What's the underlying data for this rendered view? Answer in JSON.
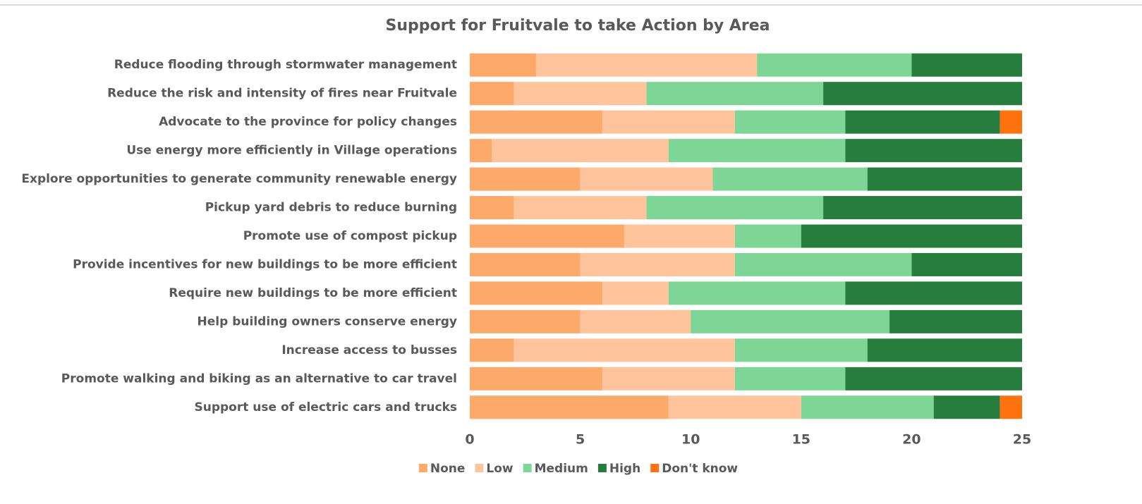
{
  "chart_data": {
    "type": "stacked_bar_horizontal",
    "title": "Support for Fruitvale to take Action by Area",
    "categories": [
      "Reduce flooding through stormwater management",
      "Reduce the risk and intensity of fires near Fruitvale",
      "Advocate to the province for policy changes",
      "Use energy more efficiently in Village operations",
      "Explore opportunities to generate community renewable energy",
      "Pickup yard debris to reduce burning",
      "Promote use of compost pickup",
      "Provide incentives for new buildings to be more efficient",
      "Require new buildings to be more efficient",
      "Help building owners conserve energy",
      "Increase access to busses",
      "Promote walking and biking as an alternative to car travel",
      "Support use of electric cars and trucks"
    ],
    "series": [
      {
        "name": "None",
        "color": "#fda96a",
        "values": [
          3,
          2,
          6,
          1,
          5,
          2,
          7,
          5,
          6,
          5,
          2,
          6,
          9
        ]
      },
      {
        "name": "Low",
        "color": "#ffc49b",
        "values": [
          10,
          6,
          6,
          8,
          6,
          6,
          5,
          7,
          3,
          5,
          10,
          6,
          6
        ]
      },
      {
        "name": "Medium",
        "color": "#7dd695",
        "values": [
          7,
          8,
          5,
          8,
          7,
          8,
          3,
          8,
          8,
          9,
          6,
          5,
          6
        ]
      },
      {
        "name": "High",
        "color": "#267d3e",
        "values": [
          5,
          9,
          7,
          8,
          7,
          9,
          10,
          5,
          8,
          6,
          7,
          8,
          3
        ]
      },
      {
        "name": "Don't know",
        "color": "#ff730f",
        "values": [
          0,
          0,
          1,
          0,
          0,
          0,
          0,
          0,
          0,
          0,
          0,
          0,
          1
        ]
      }
    ],
    "xlim": [
      0,
      25
    ],
    "xticks": [
      0,
      5,
      10,
      15,
      20,
      25
    ],
    "legend": "bottom"
  }
}
